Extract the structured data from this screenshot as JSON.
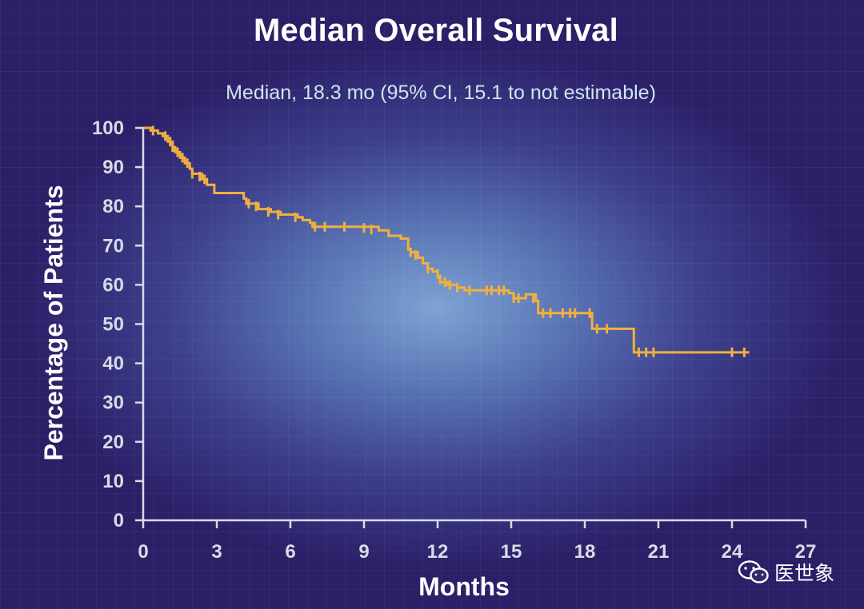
{
  "chart_data": {
    "type": "line",
    "title": "Median Overall Survival",
    "subtitle": "Median, 18.3 mo (95% CI, 15.1 to not estimable)",
    "xlabel": "Months",
    "ylabel": "Percentage of Patients",
    "xlim": [
      0,
      27
    ],
    "ylim": [
      0,
      100
    ],
    "xticks": [
      "0",
      "3",
      "6",
      "9",
      "12",
      "15",
      "18",
      "21",
      "24",
      "27"
    ],
    "yticks": [
      "0",
      "10",
      "20",
      "30",
      "40",
      "50",
      "60",
      "70",
      "80",
      "90",
      "100"
    ],
    "series": [
      {
        "name": "Overall survival",
        "color": "#f0b040",
        "steps": [
          [
            0,
            100
          ],
          [
            0.3,
            99.3
          ],
          [
            0.6,
            98.6
          ],
          [
            0.8,
            97.9
          ],
          [
            1.0,
            96.5
          ],
          [
            1.2,
            95.1
          ],
          [
            1.3,
            93.8
          ],
          [
            1.5,
            92.4
          ],
          [
            1.7,
            91.0
          ],
          [
            1.9,
            89.6
          ],
          [
            2.0,
            88.3
          ],
          [
            2.4,
            86.9
          ],
          [
            2.6,
            85.5
          ],
          [
            2.9,
            83.4
          ],
          [
            4.1,
            82.0
          ],
          [
            4.2,
            80.7
          ],
          [
            4.7,
            79.3
          ],
          [
            5.2,
            78.6
          ],
          [
            5.6,
            77.9
          ],
          [
            6.3,
            77.2
          ],
          [
            6.5,
            76.5
          ],
          [
            6.8,
            75.8
          ],
          [
            6.9,
            74.8
          ],
          [
            9.6,
            73.9
          ],
          [
            10.0,
            72.5
          ],
          [
            10.5,
            71.8
          ],
          [
            10.8,
            69.0
          ],
          [
            10.9,
            68.3
          ],
          [
            11.2,
            66.9
          ],
          [
            11.4,
            65.5
          ],
          [
            11.6,
            64.1
          ],
          [
            11.8,
            63.4
          ],
          [
            12.0,
            62.1
          ],
          [
            12.1,
            60.7
          ],
          [
            12.4,
            60.0
          ],
          [
            12.8,
            59.3
          ],
          [
            13.1,
            58.6
          ],
          [
            14.9,
            57.9
          ],
          [
            15.1,
            56.6
          ],
          [
            15.6,
            57.6
          ],
          [
            16.0,
            55.9
          ],
          [
            16.1,
            52.8
          ],
          [
            18.3,
            48.8
          ],
          [
            19.7,
            48.8
          ],
          [
            20.0,
            42.8
          ],
          [
            24.7,
            42.8
          ]
        ],
        "censors": [
          [
            0.4,
            99.3
          ],
          [
            0.9,
            97.9
          ],
          [
            1.1,
            96.5
          ],
          [
            1.2,
            95.1
          ],
          [
            1.4,
            93.8
          ],
          [
            1.6,
            92.4
          ],
          [
            1.8,
            91.0
          ],
          [
            2.0,
            88.3
          ],
          [
            2.3,
            87.6
          ],
          [
            2.5,
            86.9
          ],
          [
            4.3,
            80.7
          ],
          [
            4.6,
            80.0
          ],
          [
            5.1,
            78.6
          ],
          [
            5.5,
            77.9
          ],
          [
            6.2,
            77.2
          ],
          [
            7.0,
            74.8
          ],
          [
            7.4,
            74.8
          ],
          [
            8.2,
            74.8
          ],
          [
            9.0,
            74.5
          ],
          [
            9.3,
            74.1
          ],
          [
            10.9,
            68.3
          ],
          [
            11.1,
            67.6
          ],
          [
            11.6,
            64.1
          ],
          [
            12.0,
            62.8
          ],
          [
            12.1,
            61.4
          ],
          [
            12.3,
            60.7
          ],
          [
            12.5,
            60.0
          ],
          [
            12.8,
            59.3
          ],
          [
            13.3,
            58.6
          ],
          [
            14.0,
            58.6
          ],
          [
            14.2,
            58.6
          ],
          [
            14.5,
            58.6
          ],
          [
            14.7,
            58.6
          ],
          [
            15.1,
            56.6
          ],
          [
            15.3,
            56.6
          ],
          [
            15.9,
            56.6
          ],
          [
            16.3,
            52.8
          ],
          [
            16.6,
            52.8
          ],
          [
            17.1,
            52.8
          ],
          [
            17.4,
            52.8
          ],
          [
            17.6,
            52.8
          ],
          [
            18.2,
            52.8
          ],
          [
            18.5,
            48.8
          ],
          [
            18.9,
            48.8
          ],
          [
            20.2,
            42.8
          ],
          [
            20.5,
            42.8
          ],
          [
            20.8,
            42.8
          ],
          [
            24.0,
            42.8
          ],
          [
            24.5,
            42.8
          ]
        ]
      }
    ]
  },
  "watermark": {
    "text": "医世象",
    "icon": "wechat-icon"
  }
}
